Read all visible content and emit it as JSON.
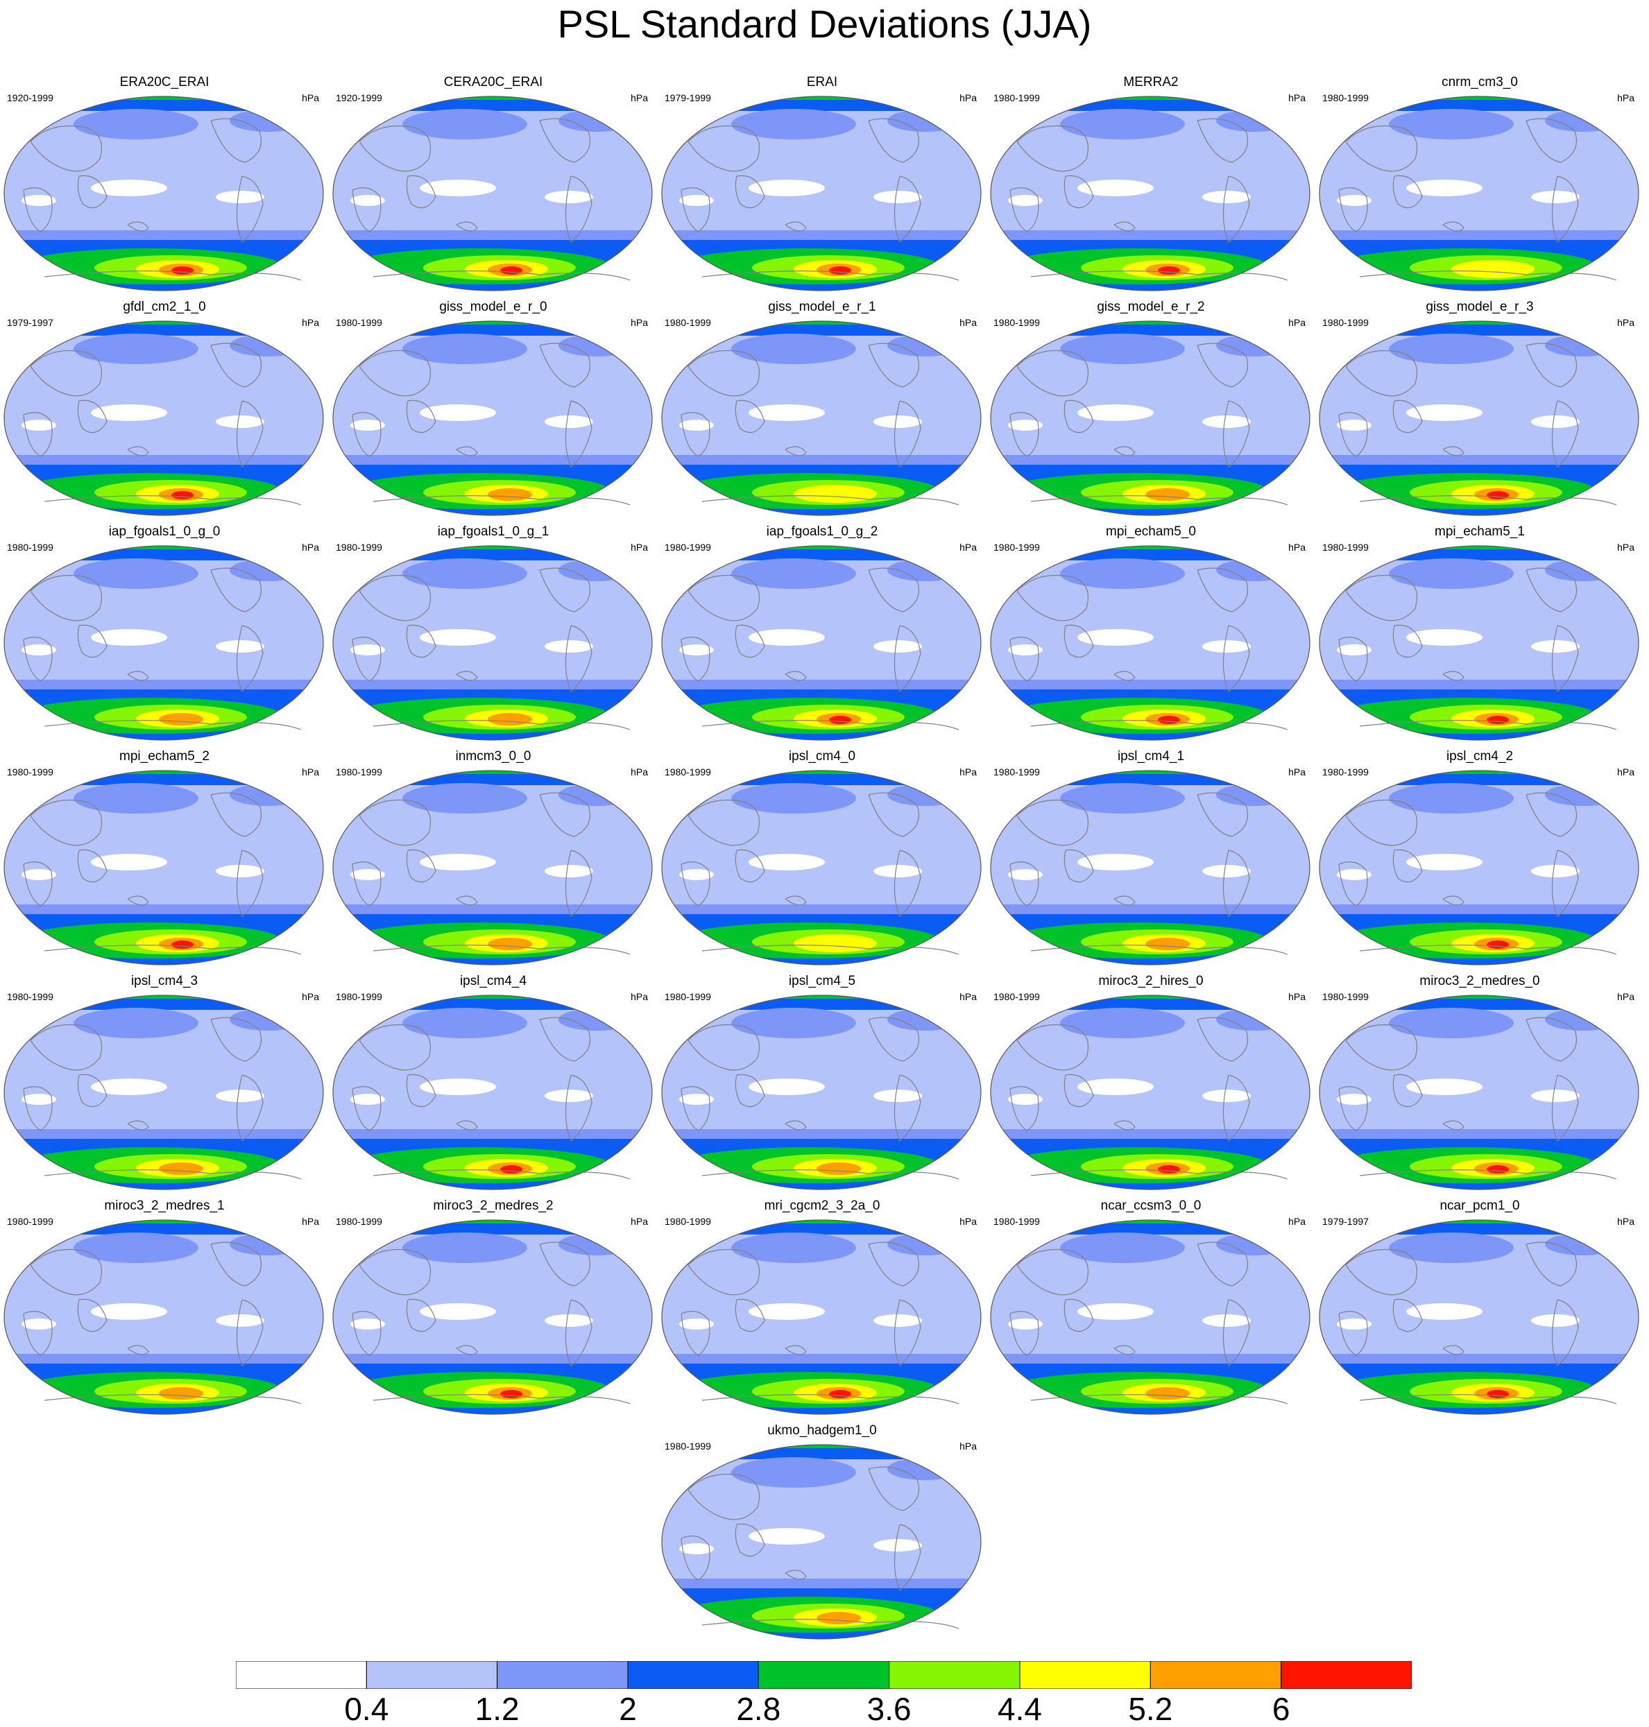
{
  "title": "PSL Standard Deviations (JJA)",
  "units": "hPa",
  "colorbar": {
    "colors": [
      "#ffffff",
      "#b4c3fa",
      "#7f96f9",
      "#0a5cf5",
      "#00c22a",
      "#86f500",
      "#ffff00",
      "#ffa000",
      "#ff1400"
    ],
    "labels": [
      "0.4",
      "1.2",
      "2",
      "2.8",
      "3.6",
      "4.4",
      "5.2",
      "6"
    ]
  },
  "panels": [
    {
      "name": "ERA20C_ERAI",
      "period": "1920-1999",
      "south_max_level": 8
    },
    {
      "name": "CERA20C_ERAI",
      "period": "1920-1999",
      "south_max_level": 8
    },
    {
      "name": "ERAI",
      "period": "1979-1999",
      "south_max_level": 8
    },
    {
      "name": "MERRA2",
      "period": "1980-1999",
      "south_max_level": 8
    },
    {
      "name": "cnrm_cm3_0",
      "period": "1980-1999",
      "south_max_level": 6
    },
    {
      "name": "gfdl_cm2_1_0",
      "period": "1979-1997",
      "south_max_level": 8
    },
    {
      "name": "giss_model_e_r_0",
      "period": "1980-1999",
      "south_max_level": 7
    },
    {
      "name": "giss_model_e_r_1",
      "period": "1980-1999",
      "south_max_level": 6
    },
    {
      "name": "giss_model_e_r_2",
      "period": "1980-1999",
      "south_max_level": 7
    },
    {
      "name": "giss_model_e_r_3",
      "period": "1980-1999",
      "south_max_level": 8
    },
    {
      "name": "iap_fgoals1_0_g_0",
      "period": "1980-1999",
      "south_max_level": 7
    },
    {
      "name": "iap_fgoals1_0_g_1",
      "period": "1980-1999",
      "south_max_level": 7
    },
    {
      "name": "iap_fgoals1_0_g_2",
      "period": "1980-1999",
      "south_max_level": 8
    },
    {
      "name": "mpi_echam5_0",
      "period": "1980-1999",
      "south_max_level": 8
    },
    {
      "name": "mpi_echam5_1",
      "period": "1980-1999",
      "south_max_level": 8
    },
    {
      "name": "mpi_echam5_2",
      "period": "1980-1999",
      "south_max_level": 8
    },
    {
      "name": "inmcm3_0_0",
      "period": "1980-1999",
      "south_max_level": 7
    },
    {
      "name": "ipsl_cm4_0",
      "period": "1980-1999",
      "south_max_level": 6
    },
    {
      "name": "ipsl_cm4_1",
      "period": "1980-1999",
      "south_max_level": 7
    },
    {
      "name": "ipsl_cm4_2",
      "period": "1980-1999",
      "south_max_level": 8
    },
    {
      "name": "ipsl_cm4_3",
      "period": "1980-1999",
      "south_max_level": 7
    },
    {
      "name": "ipsl_cm4_4",
      "period": "1980-1999",
      "south_max_level": 8
    },
    {
      "name": "ipsl_cm4_5",
      "period": "1980-1999",
      "south_max_level": 7
    },
    {
      "name": "miroc3_2_hires_0",
      "period": "1980-1999",
      "south_max_level": 8
    },
    {
      "name": "miroc3_2_medres_0",
      "period": "1980-1999",
      "south_max_level": 8
    },
    {
      "name": "miroc3_2_medres_1",
      "period": "1980-1999",
      "south_max_level": 7
    },
    {
      "name": "miroc3_2_medres_2",
      "period": "1980-1999",
      "south_max_level": 8
    },
    {
      "name": "mri_cgcm2_3_2a_0",
      "period": "1980-1999",
      "south_max_level": 8
    },
    {
      "name": "ncar_ccsm3_0_0",
      "period": "1980-1999",
      "south_max_level": 7
    },
    {
      "name": "ncar_pcm1_0",
      "period": "1979-1997",
      "south_max_level": 8
    },
    {
      "name": "ukmo_hadgem1_0",
      "period": "1980-1999",
      "south_max_level": 7
    }
  ]
}
